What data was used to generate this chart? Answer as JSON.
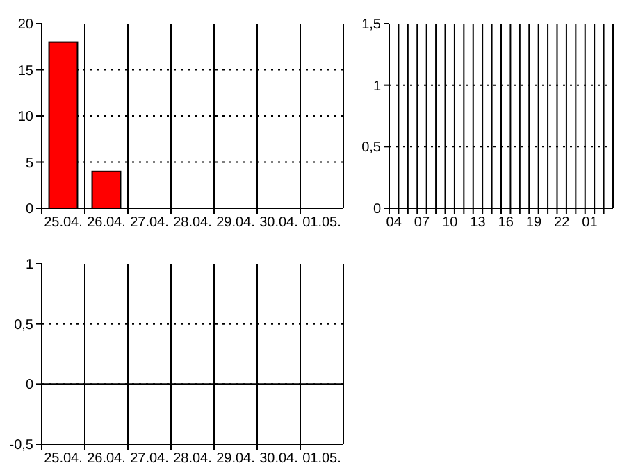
{
  "chart_data": [
    {
      "type": "bar",
      "categories": [
        "25.04.",
        "26.04.",
        "27.04.",
        "28.04.",
        "29.04.",
        "30.04.",
        "01.05."
      ],
      "values": [
        18,
        4,
        0,
        0,
        0,
        0,
        0
      ],
      "color": "#ff0000",
      "ylim": [
        0,
        20
      ],
      "yticks": [
        0,
        5,
        10,
        15,
        20
      ],
      "grid": true
    },
    {
      "type": "bar",
      "categories": [
        "04",
        null,
        null,
        "07",
        null,
        null,
        "10",
        null,
        null,
        "13",
        null,
        null,
        "16",
        null,
        null,
        "19",
        null,
        null,
        "22",
        null,
        null,
        "01",
        null,
        null
      ],
      "values": [
        0,
        0,
        0,
        0,
        0,
        0,
        0,
        0,
        0,
        0,
        0,
        0,
        0,
        0,
        0,
        0,
        0,
        0,
        0,
        0,
        0,
        0,
        0,
        0
      ],
      "color": "#ff0000",
      "ylim": [
        0,
        1.5
      ],
      "yticks": [
        0,
        {
          "value": 0.5,
          "label": "0,5"
        },
        1,
        {
          "value": 1.5,
          "label": "1,5"
        }
      ],
      "grid": true
    },
    {
      "type": "bar",
      "categories": [
        "25.04.",
        "26.04.",
        "27.04.",
        "28.04.",
        "29.04.",
        "30.04.",
        "01.05."
      ],
      "values": [
        null,
        null,
        null,
        null,
        null,
        null,
        null
      ],
      "ylim": [
        -0.5,
        1
      ],
      "yticks": [
        {
          "value": -0.5,
          "label": "-0,5"
        },
        0,
        {
          "value": 0.5,
          "label": "0,5"
        },
        1
      ],
      "grid": true,
      "ref_lines": [
        {
          "axis": "y",
          "value": 0
        }
      ]
    }
  ]
}
